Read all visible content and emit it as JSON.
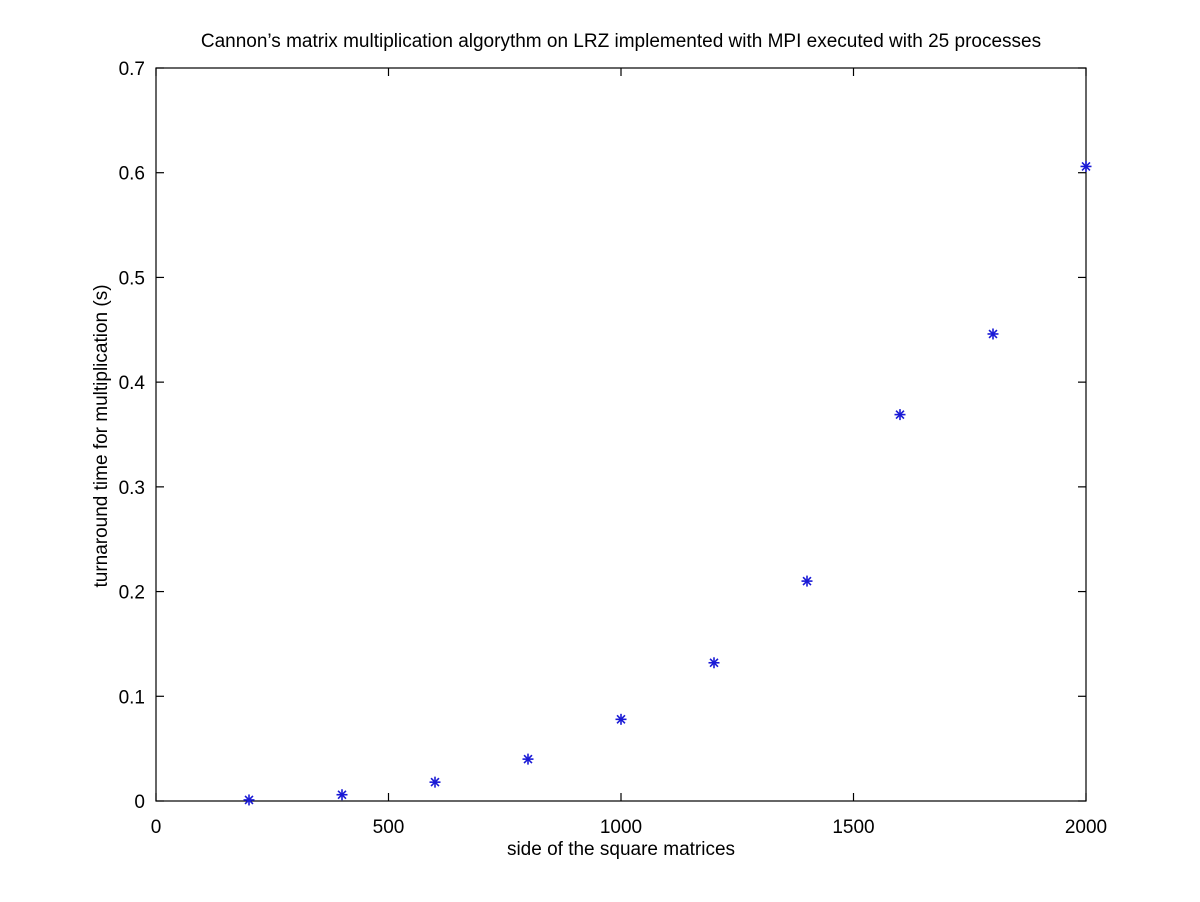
{
  "chart_data": {
    "type": "scatter",
    "title": "Cannon’s matrix multiplication algorythm on LRZ implemented with MPI executed with 25 processes",
    "xlabel": "side of the square matrices",
    "ylabel": "turnaround time for multiplication (s)",
    "xlim": [
      0,
      2000
    ],
    "ylim": [
      0,
      0.7
    ],
    "xticks": [
      0,
      500,
      1000,
      1500,
      2000
    ],
    "xtick_labels": [
      "0",
      "500",
      "1000",
      "1500",
      "2000"
    ],
    "yticks": [
      0,
      0.1,
      0.2,
      0.3,
      0.4,
      0.5,
      0.6,
      0.7
    ],
    "ytick_labels": [
      "0",
      "0.1",
      "0.2",
      "0.3",
      "0.4",
      "0.5",
      "0.6",
      "0.7"
    ],
    "grid": false,
    "marker": "asterisk",
    "marker_color": "#1a1ad6",
    "series": [
      {
        "x": [
          200,
          400,
          600,
          800,
          1000,
          1200,
          1400,
          1600,
          1800,
          2000
        ],
        "y": [
          0.001,
          0.006,
          0.018,
          0.04,
          0.078,
          0.132,
          0.21,
          0.369,
          0.446,
          0.606
        ]
      }
    ]
  }
}
